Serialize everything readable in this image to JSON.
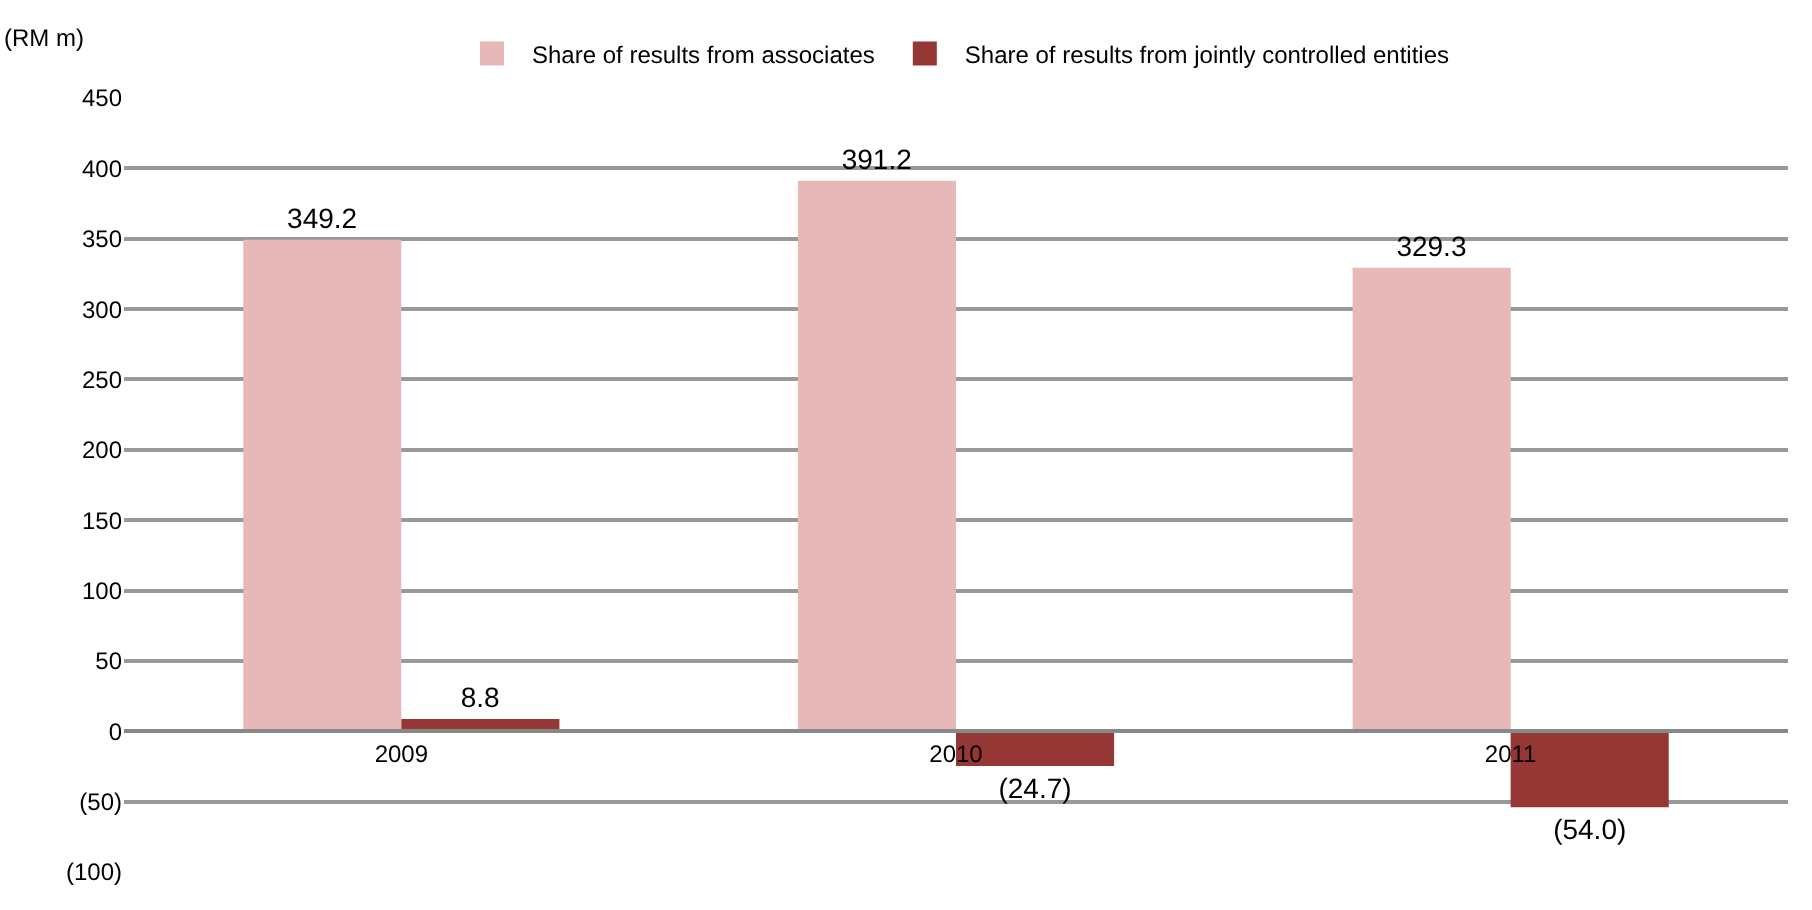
{
  "chart_data": {
    "type": "bar",
    "ylabel": "(RM m)",
    "categories": [
      "2009",
      "2010",
      "2011"
    ],
    "series": [
      {
        "name": "Share of results from associates",
        "color": "#e6b8b7",
        "values": [
          349.2,
          391.2,
          329.3
        ],
        "value_labels": [
          "349.2",
          "391.2",
          "329.3"
        ]
      },
      {
        "name": "Share of results from jointly controlled entities",
        "color": "#953735",
        "values": [
          8.8,
          -24.7,
          -54.0
        ],
        "value_labels": [
          "8.8",
          "(24.7)",
          "(54.0)"
        ]
      }
    ],
    "ylim": [
      -100,
      450
    ],
    "yticks": [
      {
        "value": -100,
        "label": "(100)"
      },
      {
        "value": -50,
        "label": "(50)"
      },
      0,
      50,
      100,
      150,
      200,
      250,
      300,
      350,
      400,
      450
    ],
    "grid": "y",
    "legend": "top"
  }
}
